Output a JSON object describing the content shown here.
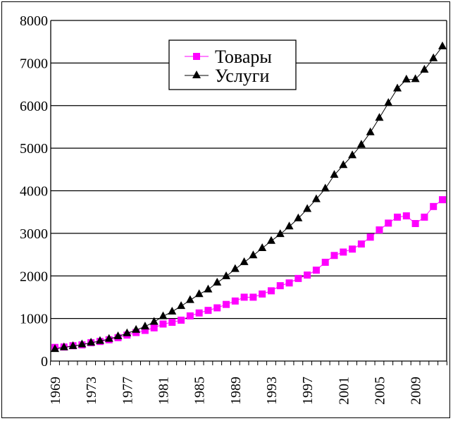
{
  "chart_data": {
    "type": "line",
    "title": "",
    "xlabel": "",
    "ylabel": "",
    "ylim": [
      0,
      8000
    ],
    "yticks": [
      0,
      1000,
      2000,
      3000,
      4000,
      5000,
      6000,
      7000,
      8000
    ],
    "ytick_labels": [
      "0",
      "1000",
      "2000",
      "3000",
      "4000",
      "5000",
      "6000",
      "7000",
      "8000"
    ],
    "x": [
      1969,
      1970,
      1971,
      1972,
      1973,
      1974,
      1975,
      1976,
      1977,
      1978,
      1979,
      1980,
      1981,
      1982,
      1983,
      1984,
      1985,
      1986,
      1987,
      1988,
      1989,
      1990,
      1991,
      1992,
      1993,
      1994,
      1995,
      1996,
      1997,
      1998,
      1999,
      2000,
      2001,
      2002,
      2003,
      2004,
      2005,
      2006,
      2007,
      2008,
      2009,
      2010,
      2011,
      2012
    ],
    "xtick_labels": [
      "1969",
      "1973",
      "1977",
      "1981",
      "1985",
      "1989",
      "1993",
      "1997",
      "2001",
      "2005",
      "2009"
    ],
    "grid": true,
    "legend_position": "top-center",
    "series": [
      {
        "name": "Товары",
        "color": "#ff00ff",
        "marker": "square",
        "values": [
          320,
          330,
          360,
          380,
          430,
          460,
          500,
          550,
          610,
          670,
          720,
          780,
          870,
          910,
          960,
          1060,
          1130,
          1190,
          1250,
          1330,
          1410,
          1500,
          1500,
          1575,
          1650,
          1770,
          1835,
          1940,
          2020,
          2135,
          2320,
          2480,
          2560,
          2630,
          2750,
          2910,
          3080,
          3240,
          3380,
          3410,
          3230,
          3380,
          3630,
          3790
        ]
      },
      {
        "name": "Услуги",
        "color": "#000000",
        "marker": "triangle",
        "values": [
          280,
          320,
          350,
          390,
          430,
          470,
          520,
          580,
          650,
          730,
          810,
          920,
          1050,
          1160,
          1290,
          1430,
          1570,
          1680,
          1840,
          1990,
          2160,
          2320,
          2480,
          2650,
          2820,
          2980,
          3160,
          3350,
          3570,
          3800,
          4050,
          4370,
          4600,
          4830,
          5080,
          5370,
          5710,
          6060,
          6400,
          6610,
          6620,
          6840,
          7110,
          7390
        ]
      }
    ]
  }
}
